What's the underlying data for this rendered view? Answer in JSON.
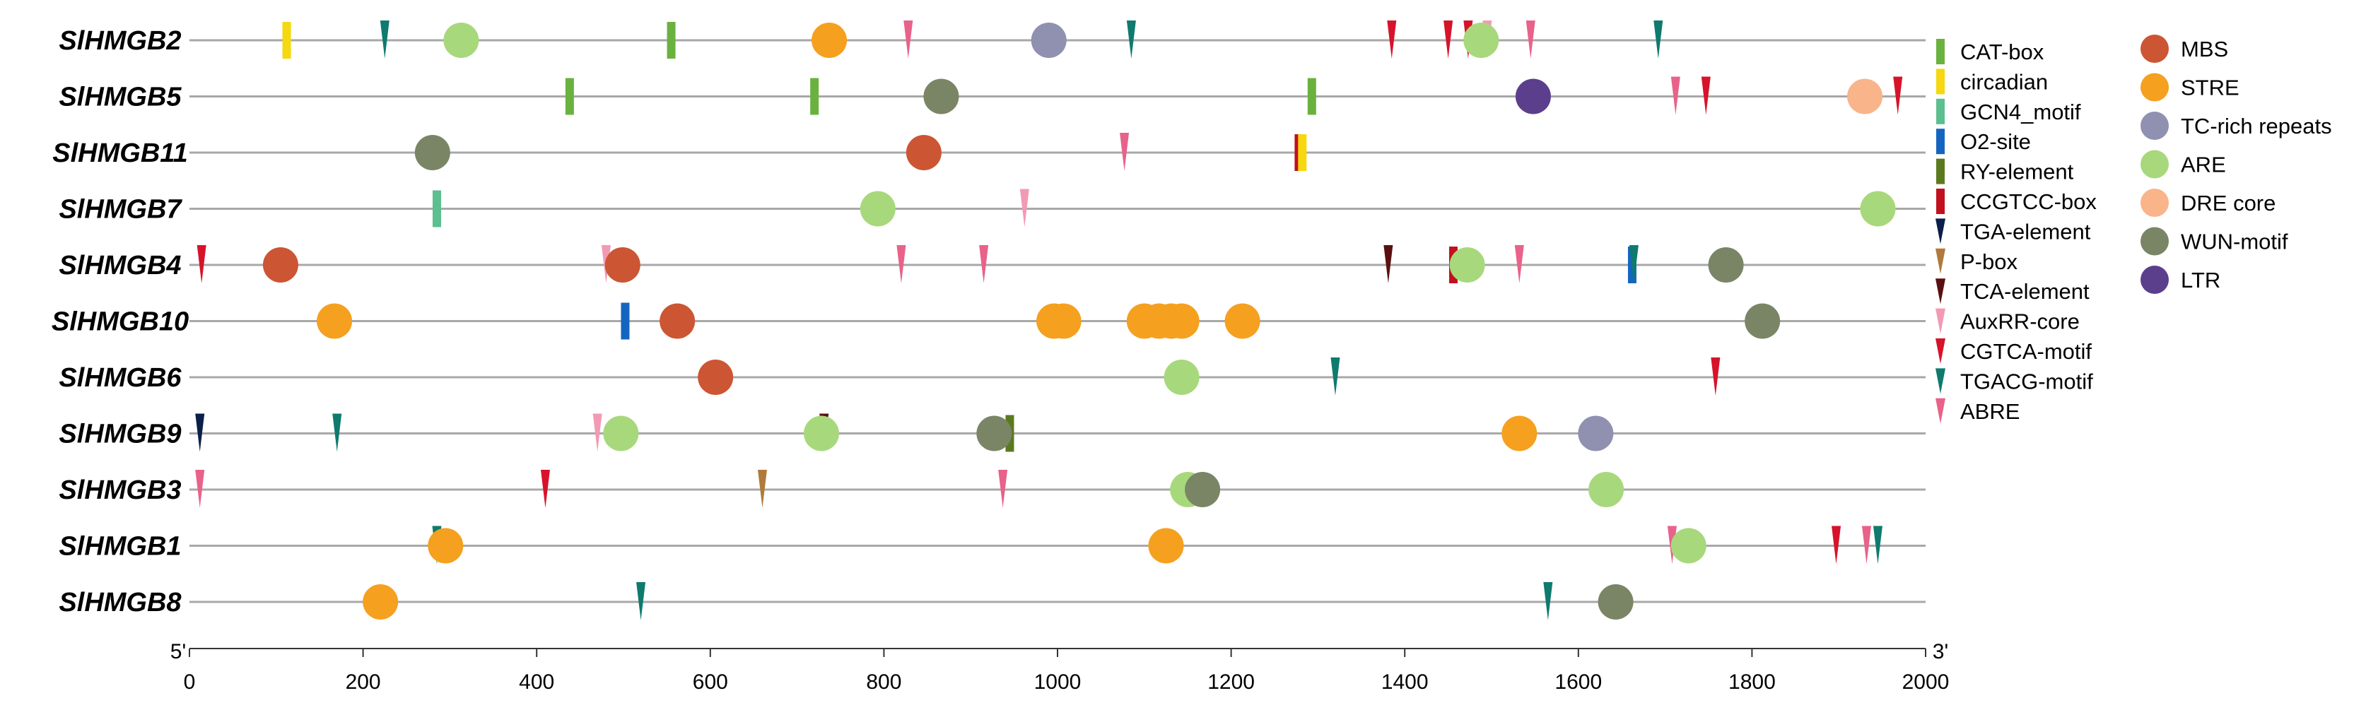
{
  "chart_data": {
    "type": "scatter",
    "title": "",
    "xlabel": "",
    "ylabel": "",
    "xlim": [
      0,
      2000
    ],
    "x_ticks": [
      0,
      200,
      400,
      600,
      800,
      1000,
      1200,
      1400,
      1600,
      1800,
      2000
    ],
    "start_label": "5'",
    "end_label": "3'",
    "categories": [
      "SlHMGB2",
      "SlHMGB5",
      "SlHMGB11",
      "SlHMGB7",
      "SlHMGB4",
      "SlHMGB10",
      "SlHMGB6",
      "SlHMGB9",
      "SlHMGB3",
      "SlHMGB1",
      "SlHMGB8"
    ],
    "element_types": [
      {
        "name": "CAT-box",
        "shape": "bar",
        "color": "#6ab23f"
      },
      {
        "name": "circadian",
        "shape": "bar",
        "color": "#f5d80f"
      },
      {
        "name": "GCN4_motif",
        "shape": "bar",
        "color": "#5bbf8f"
      },
      {
        "name": "O2-site",
        "shape": "bar",
        "color": "#1565c0"
      },
      {
        "name": "RY-element",
        "shape": "bar",
        "color": "#5b7a1e"
      },
      {
        "name": "CCGTCC-box",
        "shape": "bar",
        "color": "#c0111f"
      },
      {
        "name": "TGA-element",
        "shape": "tri",
        "color": "#0b1f4a"
      },
      {
        "name": "P-box",
        "shape": "tri",
        "color": "#b07a3b"
      },
      {
        "name": "TCA-element",
        "shape": "tri",
        "color": "#5a1010"
      },
      {
        "name": "AuxRR-core",
        "shape": "tri",
        "color": "#f29ab4"
      },
      {
        "name": "CGTCA-motif",
        "shape": "tri",
        "color": "#d6132a"
      },
      {
        "name": "TGACG-motif",
        "shape": "tri",
        "color": "#0f7a6e"
      },
      {
        "name": "ABRE",
        "shape": "tri",
        "color": "#e8628a"
      },
      {
        "name": "MBS",
        "shape": "circle",
        "color": "#cc5533"
      },
      {
        "name": "STRE",
        "shape": "circle",
        "color": "#f5a01f"
      },
      {
        "name": "TC-rich repeats",
        "shape": "circle",
        "color": "#9090b0"
      },
      {
        "name": "ARE",
        "shape": "circle",
        "color": "#a8d87c"
      },
      {
        "name": "DRE core",
        "shape": "circle",
        "color": "#f9b48a"
      },
      {
        "name": "WUN-motif",
        "shape": "circle",
        "color": "#7a8566"
      },
      {
        "name": "LTR",
        "shape": "circle",
        "color": "#5b3f8c"
      }
    ],
    "series": [
      {
        "name": "SlHMGB2",
        "elements": [
          {
            "type": "circadian",
            "x": 112
          },
          {
            "type": "TGACG-motif",
            "x": 225
          },
          {
            "type": "ARE",
            "x": 313
          },
          {
            "type": "CAT-box",
            "x": 555
          },
          {
            "type": "STRE",
            "x": 737
          },
          {
            "type": "ABRE",
            "x": 828
          },
          {
            "type": "TC-rich repeats",
            "x": 990
          },
          {
            "type": "TGACG-motif",
            "x": 1085
          },
          {
            "type": "CGTCA-motif",
            "x": 1385
          },
          {
            "type": "CGTCA-motif",
            "x": 1450
          },
          {
            "type": "CGTCA-motif",
            "x": 1473
          },
          {
            "type": "ARE",
            "x": 1488
          },
          {
            "type": "AuxRR-core",
            "x": 1495
          },
          {
            "type": "ABRE",
            "x": 1545
          },
          {
            "type": "TGACG-motif",
            "x": 1692
          }
        ]
      },
      {
        "name": "SlHMGB5",
        "elements": [
          {
            "type": "CAT-box",
            "x": 438
          },
          {
            "type": "CAT-box",
            "x": 720
          },
          {
            "type": "WUN-motif",
            "x": 866
          },
          {
            "type": "CAT-box",
            "x": 1293
          },
          {
            "type": "LTR",
            "x": 1548
          },
          {
            "type": "ABRE",
            "x": 1712
          },
          {
            "type": "CGTCA-motif",
            "x": 1747
          },
          {
            "type": "DRE core",
            "x": 1930
          },
          {
            "type": "CGTCA-motif",
            "x": 1968
          }
        ]
      },
      {
        "name": "SlHMGB11",
        "elements": [
          {
            "type": "WUN-motif",
            "x": 280
          },
          {
            "type": "MBS",
            "x": 846
          },
          {
            "type": "ABRE",
            "x": 1077
          },
          {
            "type": "CCGTCC-box",
            "x": 1278
          },
          {
            "type": "circadian",
            "x": 1282
          }
        ]
      },
      {
        "name": "SlHMGB7",
        "elements": [
          {
            "type": "GCN4_motif",
            "x": 285
          },
          {
            "type": "ARE",
            "x": 793
          },
          {
            "type": "AuxRR-core",
            "x": 962
          },
          {
            "type": "ARE",
            "x": 1945
          }
        ]
      },
      {
        "name": "SlHMGB4",
        "elements": [
          {
            "type": "CGTCA-motif",
            "x": 14
          },
          {
            "type": "MBS",
            "x": 105
          },
          {
            "type": "AuxRR-core",
            "x": 480
          },
          {
            "type": "MBS",
            "x": 499
          },
          {
            "type": "ABRE",
            "x": 820
          },
          {
            "type": "ABRE",
            "x": 915
          },
          {
            "type": "TCA-element",
            "x": 1381
          },
          {
            "type": "CCGTCC-box",
            "x": 1456
          },
          {
            "type": "ARE",
            "x": 1472
          },
          {
            "type": "ABRE",
            "x": 1532
          },
          {
            "type": "O2-site",
            "x": 1662
          },
          {
            "type": "TGACG-motif",
            "x": 1664
          },
          {
            "type": "WUN-motif",
            "x": 1770
          }
        ]
      },
      {
        "name": "SlHMGB10",
        "elements": [
          {
            "type": "STRE",
            "x": 167
          },
          {
            "type": "O2-site",
            "x": 502
          },
          {
            "type": "MBS",
            "x": 562
          },
          {
            "type": "STRE",
            "x": 996
          },
          {
            "type": "STRE",
            "x": 1007
          },
          {
            "type": "STRE",
            "x": 1100
          },
          {
            "type": "STRE",
            "x": 1117
          },
          {
            "type": "STRE",
            "x": 1131
          },
          {
            "type": "STRE",
            "x": 1143
          },
          {
            "type": "STRE",
            "x": 1213
          },
          {
            "type": "WUN-motif",
            "x": 1812
          }
        ]
      },
      {
        "name": "SlHMGB6",
        "elements": [
          {
            "type": "MBS",
            "x": 606
          },
          {
            "type": "ARE",
            "x": 1143
          },
          {
            "type": "TGACG-motif",
            "x": 1320
          },
          {
            "type": "CGTCA-motif",
            "x": 1758
          }
        ]
      },
      {
        "name": "SlHMGB9",
        "elements": [
          {
            "type": "TGA-element",
            "x": 12
          },
          {
            "type": "TGACG-motif",
            "x": 170
          },
          {
            "type": "AuxRR-core",
            "x": 470
          },
          {
            "type": "ARE",
            "x": 497
          },
          {
            "type": "ARE",
            "x": 728
          },
          {
            "type": "TCA-element",
            "x": 731
          },
          {
            "type": "WUN-motif",
            "x": 927
          },
          {
            "type": "RY-element",
            "x": 945
          },
          {
            "type": "STRE",
            "x": 1532
          },
          {
            "type": "TC-rich repeats",
            "x": 1620
          }
        ]
      },
      {
        "name": "SlHMGB3",
        "elements": [
          {
            "type": "ABRE",
            "x": 12
          },
          {
            "type": "CGTCA-motif",
            "x": 410
          },
          {
            "type": "P-box",
            "x": 660
          },
          {
            "type": "ABRE",
            "x": 937
          },
          {
            "type": "ARE",
            "x": 1150
          },
          {
            "type": "WUN-motif",
            "x": 1167
          },
          {
            "type": "ARE",
            "x": 1632
          }
        ]
      },
      {
        "name": "SlHMGB1",
        "elements": [
          {
            "type": "TGACG-motif",
            "x": 285
          },
          {
            "type": "STRE",
            "x": 295
          },
          {
            "type": "STRE",
            "x": 1125
          },
          {
            "type": "ABRE",
            "x": 1708
          },
          {
            "type": "ARE",
            "x": 1727
          },
          {
            "type": "CGTCA-motif",
            "x": 1897
          },
          {
            "type": "ABRE",
            "x": 1932
          },
          {
            "type": "TGACG-motif",
            "x": 1945
          }
        ]
      },
      {
        "name": "SlHMGB8",
        "elements": [
          {
            "type": "STRE",
            "x": 220
          },
          {
            "type": "TGACG-motif",
            "x": 520
          },
          {
            "type": "TGACG-motif",
            "x": 1565
          },
          {
            "type": "WUN-motif",
            "x": 1643
          }
        ]
      }
    ]
  }
}
